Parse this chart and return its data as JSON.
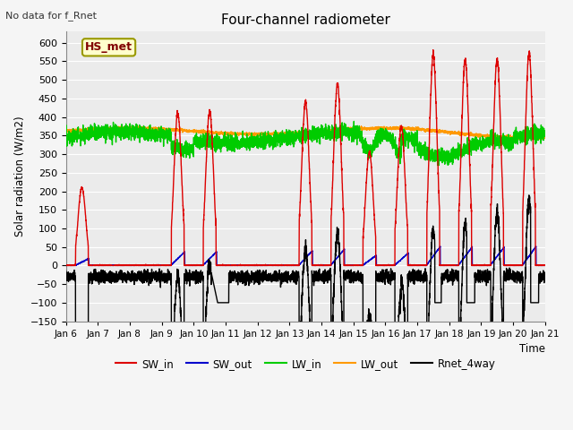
{
  "title": "Four-channel radiometer",
  "subtitle": "No data for f_Rnet",
  "ylabel": "Solar radiation (W/m2)",
  "xlabel": "Time",
  "station_label": "HS_met",
  "ylim": [
    -150,
    630
  ],
  "yticks": [
    -150,
    -100,
    -50,
    0,
    50,
    100,
    150,
    200,
    250,
    300,
    350,
    400,
    450,
    500,
    550,
    600
  ],
  "xtick_labels": [
    "Jan 6",
    "Jan 7",
    "Jan 8",
    "Jan 9",
    "Jan 10",
    "Jan 11",
    "Jan 12",
    "Jan 13",
    "Jan 14",
    "Jan 15",
    "Jan 16",
    "Jan 17",
    "Jan 18",
    "Jan 19",
    "Jan 20",
    "Jan 21"
  ],
  "colors": {
    "SW_in": "#dd0000",
    "SW_out": "#0000cc",
    "LW_in": "#00cc00",
    "LW_out": "#ff9900",
    "Rnet_4way": "#000000"
  },
  "fig_bg": "#f0f0f0",
  "plot_bg": "#e8e8e8",
  "grid_color": "#ffffff",
  "station_box_face": "#ffffcc",
  "station_box_edge": "#999900",
  "station_text_color": "#800000"
}
